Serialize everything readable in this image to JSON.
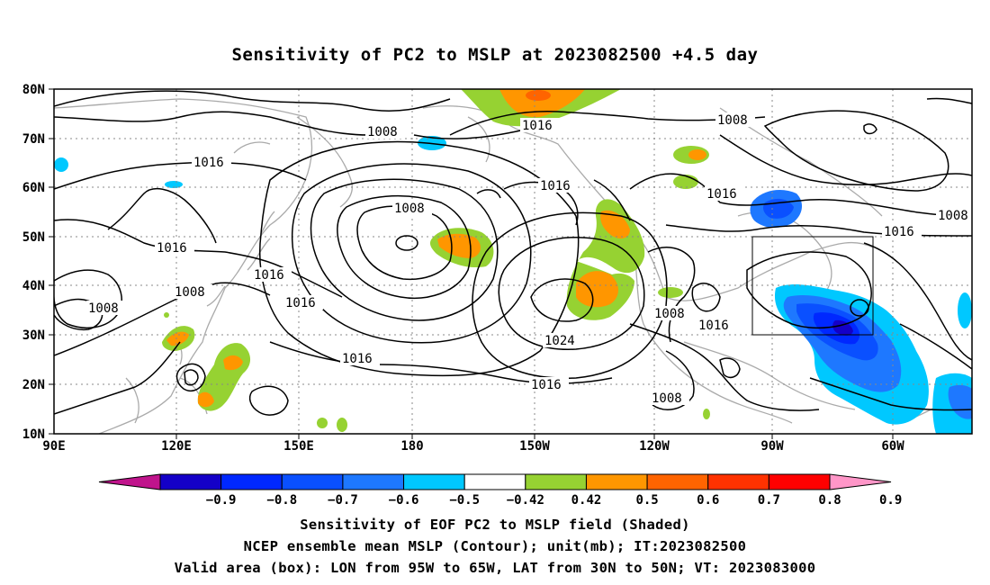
{
  "title": "Sensitivity of PC2 to MSLP at 2023082500 +4.5 day",
  "lat_labels": [
    "80N",
    "70N",
    "60N",
    "50N",
    "40N",
    "30N",
    "20N",
    "10N"
  ],
  "lon_labels": [
    "90E",
    "120E",
    "150E",
    "180",
    "150W",
    "120W",
    "90W",
    "60W"
  ],
  "colorbar": {
    "labels": [
      "-0.9",
      "-0.8",
      "-0.7",
      "-0.6",
      "-0.5",
      "-0.42",
      "0.42",
      "0.5",
      "0.6",
      "0.7",
      "0.8",
      "0.9"
    ],
    "colors": [
      "#c0148c",
      "#1400c8",
      "#0028ff",
      "#0a50ff",
      "#1e78ff",
      "#00c8ff",
      "#ffffff",
      "#96d232",
      "#ff9600",
      "#ff6400",
      "#ff3200",
      "#ff0000",
      "#ff96c8"
    ]
  },
  "contours": [
    {
      "label": "1008"
    },
    {
      "label": "1016"
    },
    {
      "label": "1016"
    },
    {
      "label": "1008"
    },
    {
      "label": "1016"
    },
    {
      "label": "1008"
    },
    {
      "label": "1016"
    },
    {
      "label": "1016"
    },
    {
      "label": "1016"
    },
    {
      "label": "1008"
    },
    {
      "label": "1008"
    },
    {
      "label": "1016"
    },
    {
      "label": "1016"
    },
    {
      "label": "1016"
    },
    {
      "label": "1024"
    },
    {
      "label": "1016"
    },
    {
      "label": "1008"
    },
    {
      "label": "1016"
    },
    {
      "label": "1008"
    }
  ],
  "box": {
    "lon_from": "95W",
    "lon_to": "65W",
    "lat_from": "30N",
    "lat_to": "50N"
  },
  "captions": [
    "Sensitivity of EOF PC2 to MSLP field (Shaded)",
    "NCEP ensemble mean MSLP (Contour); unit(mb); IT:2023082500",
    "Valid area (box): LON from 95W to 65W, LAT from 30N to 50N; VT: 2023083000"
  ]
}
